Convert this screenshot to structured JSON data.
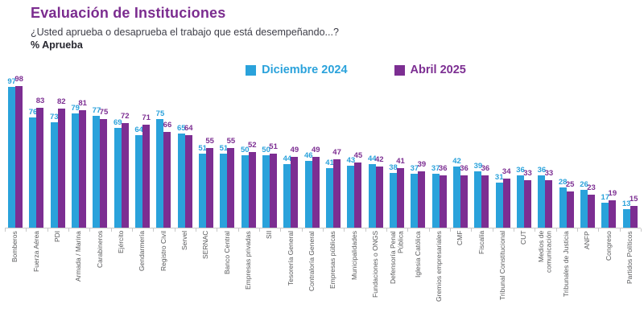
{
  "header": {
    "title": "Evaluación de Instituciones",
    "subtitle": "¿Usted aprueba o desaprueba el trabajo que está desempeñando...?",
    "measure_label": "% Aprueba"
  },
  "colors": {
    "title": "#7b2c8f",
    "teal": "#2aa2db",
    "purple": "#7c2e92",
    "axis_line": "#c9c9c9",
    "category_label": "#58595b"
  },
  "chart_data": {
    "type": "bar",
    "title": "Evaluación de Instituciones",
    "subtitle": "¿Usted aprueba o desaprueba el trabajo que está desempeñando...?",
    "ylabel": "% Aprueba",
    "ylim": [
      0,
      100
    ],
    "grid": false,
    "legend_position": "top",
    "categories": [
      "Bomberos",
      "Fuerza Aérea",
      "PDI",
      "Armada / Marina",
      "Carabineros",
      "Ejército",
      "Gendarmería",
      "Registro Civil",
      "Servel",
      "SERNAC",
      "Banco Central",
      "Empresas privadas",
      "SII",
      "Tesorería General",
      "Contraloría General",
      "Empresas públicas",
      "Municipalidades",
      "Fundaciones o ONGS",
      "Defensoría Penal\nPública",
      "Iglesia Católica",
      "Gremios empresariales",
      "CMF",
      "Fiscalía",
      "Tribunal Constitucional",
      "CUT",
      "Medios de\ncomunicación",
      "Tribunales de Justicia",
      "ANFP",
      "Congreso",
      "Partidos Políticos"
    ],
    "series": [
      {
        "name": "Diciembre 2024",
        "color": "#2aa2db",
        "values": [
          97,
          76,
          73,
          79,
          77,
          69,
          64,
          75,
          65,
          51,
          51,
          50,
          50,
          44,
          46,
          41,
          43,
          44,
          38,
          37,
          37,
          42,
          39,
          31,
          36,
          36,
          28,
          26,
          17,
          13
        ]
      },
      {
        "name": "Abril 2025",
        "color": "#7c2e92",
        "values": [
          98,
          83,
          82,
          81,
          75,
          72,
          71,
          66,
          64,
          55,
          55,
          52,
          51,
          49,
          49,
          47,
          45,
          42,
          41,
          39,
          36,
          36,
          36,
          34,
          33,
          33,
          25,
          23,
          19,
          15
        ]
      }
    ]
  }
}
